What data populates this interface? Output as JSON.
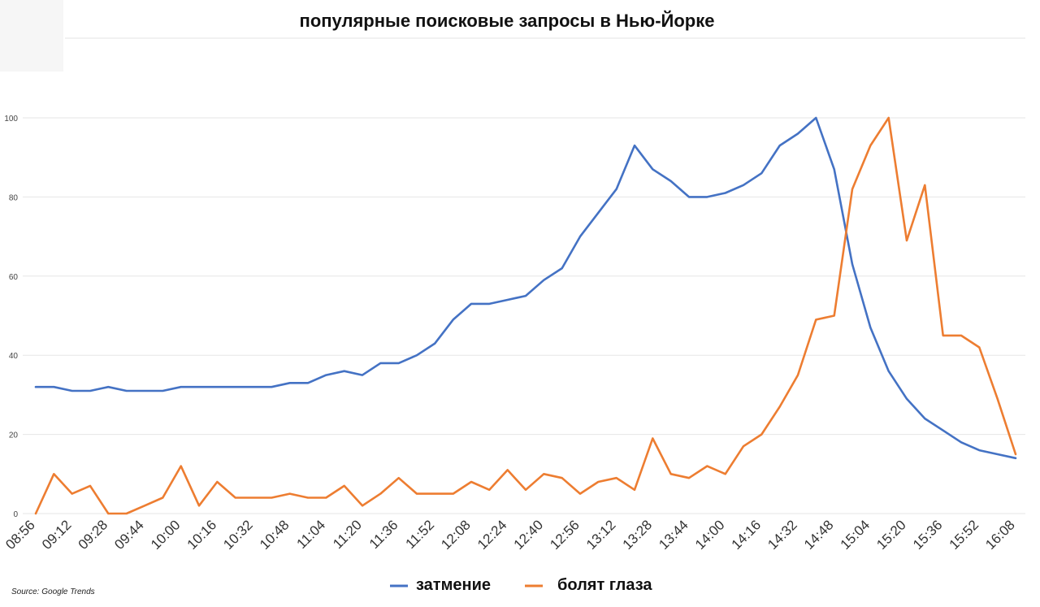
{
  "chart_data": {
    "type": "line",
    "title": "популярные поисковые запросы в Нью-Йорке",
    "source": "Source: Google Trends",
    "ylim": [
      0,
      100
    ],
    "yticks": [
      0,
      20,
      40,
      60,
      80,
      100
    ],
    "grid": true,
    "legend_position": "bottom-center",
    "x_tick_labels": [
      "08:56",
      "09:12",
      "09:28",
      "09:44",
      "10:00",
      "10:16",
      "10:32",
      "10:48",
      "11:04",
      "11:20",
      "11:36",
      "11:52",
      "12:08",
      "12:24",
      "12:40",
      "12:56",
      "13:12",
      "13:28",
      "13:44",
      "14:00",
      "14:16",
      "14:32",
      "14:48",
      "15:04",
      "15:20",
      "15:36",
      "15:52",
      "16:08"
    ],
    "x_count": 55,
    "series": [
      {
        "name": "затмение",
        "color": "#4472c4",
        "values": [
          32,
          32,
          31,
          31,
          32,
          31,
          31,
          31,
          32,
          32,
          32,
          32,
          32,
          32,
          33,
          33,
          35,
          36,
          35,
          38,
          38,
          40,
          43,
          49,
          53,
          53,
          54,
          55,
          59,
          62,
          70,
          76,
          82,
          93,
          87,
          84,
          80,
          80,
          81,
          83,
          86,
          93,
          96,
          100,
          87,
          63,
          47,
          36,
          29,
          24,
          21,
          18,
          16,
          15,
          14
        ]
      },
      {
        "name": "болят глаза",
        "color": "#ed7d31",
        "values": [
          0,
          10,
          5,
          7,
          0,
          0,
          2,
          4,
          12,
          2,
          8,
          4,
          4,
          4,
          5,
          4,
          4,
          7,
          2,
          5,
          9,
          5,
          5,
          5,
          8,
          6,
          11,
          6,
          10,
          9,
          5,
          8,
          9,
          6,
          19,
          10,
          9,
          12,
          10,
          17,
          20,
          27,
          35,
          49,
          50,
          82,
          93,
          100,
          69,
          83,
          45,
          45,
          42,
          29,
          15
        ]
      }
    ]
  }
}
